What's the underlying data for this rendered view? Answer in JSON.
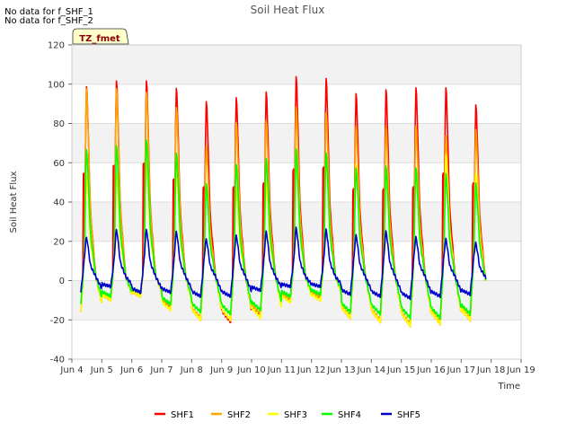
{
  "notes": [
    "No data for f_SHF_1",
    "No data for f_SHF_2"
  ],
  "badge": "TZ_fmet",
  "chart_data": {
    "type": "line",
    "title": "Soil Heat Flux",
    "xlabel": "Time",
    "ylabel": "Soil Heat Flux",
    "ylim": [
      -40,
      120
    ],
    "yticks": [
      -40,
      -20,
      0,
      20,
      40,
      60,
      80,
      100,
      120
    ],
    "xlim": [
      4,
      19
    ],
    "xticks": [
      4,
      5,
      6,
      7,
      8,
      9,
      10,
      11,
      12,
      13,
      14,
      15,
      16,
      17,
      18,
      19
    ],
    "xtick_labels": [
      "Jun 4",
      "Jun 5",
      "Jun 6",
      "Jun 7",
      "Jun 8",
      "Jun 9",
      "Jun 10",
      "Jun 11",
      "Jun 12",
      "Jun 13",
      "Jun 14",
      "Jun 15",
      "Jun 16",
      "Jun 17",
      "Jun 18",
      "Jun 19"
    ],
    "grid": true,
    "legend_position": "bottom",
    "x_start": 4.3,
    "x_end": 17.83,
    "samples_per_day": 48,
    "days": [
      4,
      5,
      6,
      7,
      8,
      9,
      10,
      11,
      12,
      13,
      14,
      15,
      16,
      17
    ],
    "series": [
      {
        "name": "SHF1",
        "color": "#ff0000",
        "daily_max": [
          101,
          104,
          104,
          100,
          93,
          95,
          98,
          106,
          105,
          97,
          99,
          100,
          100,
          91
        ],
        "daily_min": [
          -16,
          -10,
          -8,
          -14,
          -20,
          -21,
          -18,
          -10,
          -9,
          -19,
          -21,
          -23,
          -22,
          -20
        ],
        "spike": [
          54,
          58,
          59,
          51,
          47,
          47,
          49,
          56,
          57,
          46,
          46,
          47,
          54,
          49
        ]
      },
      {
        "name": "SHF2",
        "color": "#ffa500",
        "daily_max": [
          100,
          100,
          98,
          90,
          70,
          82,
          83,
          90,
          87,
          80,
          80,
          80,
          75,
          78
        ],
        "daily_min": [
          -16,
          -9,
          -7,
          -13,
          -19,
          -20,
          -17,
          -9,
          -8,
          -18,
          -20,
          -22,
          -21,
          -19
        ],
        "spike": [
          0,
          0,
          0,
          0,
          0,
          0,
          0,
          0,
          0,
          0,
          0,
          0,
          0,
          0
        ]
      },
      {
        "name": "SHF3",
        "color": "#ffff00",
        "daily_max": [
          55,
          56,
          62,
          58,
          50,
          48,
          51,
          62,
          63,
          60,
          55,
          55,
          65,
          55
        ],
        "daily_min": [
          -16,
          -10,
          -8,
          -15,
          -20,
          -20,
          -19,
          -11,
          -10,
          -19,
          -21,
          -23,
          -22,
          -20
        ],
        "spike": [
          0,
          0,
          0,
          0,
          0,
          0,
          0,
          0,
          0,
          0,
          0,
          0,
          0,
          0
        ]
      },
      {
        "name": "SHF4",
        "color": "#00ff00",
        "daily_max": [
          68,
          70,
          73,
          66,
          50,
          60,
          63,
          68,
          66,
          58,
          59,
          58,
          55,
          50
        ],
        "daily_min": [
          -12,
          -8,
          -6,
          -12,
          -16,
          -17,
          -15,
          -8,
          -7,
          -16,
          -17,
          -19,
          -19,
          -17
        ],
        "spike": [
          0,
          0,
          0,
          0,
          0,
          0,
          0,
          0,
          0,
          0,
          0,
          0,
          0,
          0
        ]
      },
      {
        "name": "SHF5",
        "color": "#0000cc",
        "daily_max": [
          22,
          26,
          26,
          25,
          21,
          23,
          25,
          27,
          26,
          23,
          25,
          22,
          21,
          19
        ],
        "daily_min": [
          -6,
          -3,
          -6,
          -6,
          -8,
          -8,
          -5,
          -3,
          -3,
          -7,
          -8,
          -9,
          -8,
          -7
        ],
        "spike": [
          0,
          0,
          0,
          0,
          0,
          0,
          0,
          0,
          0,
          0,
          0,
          0,
          0,
          0
        ]
      }
    ]
  }
}
